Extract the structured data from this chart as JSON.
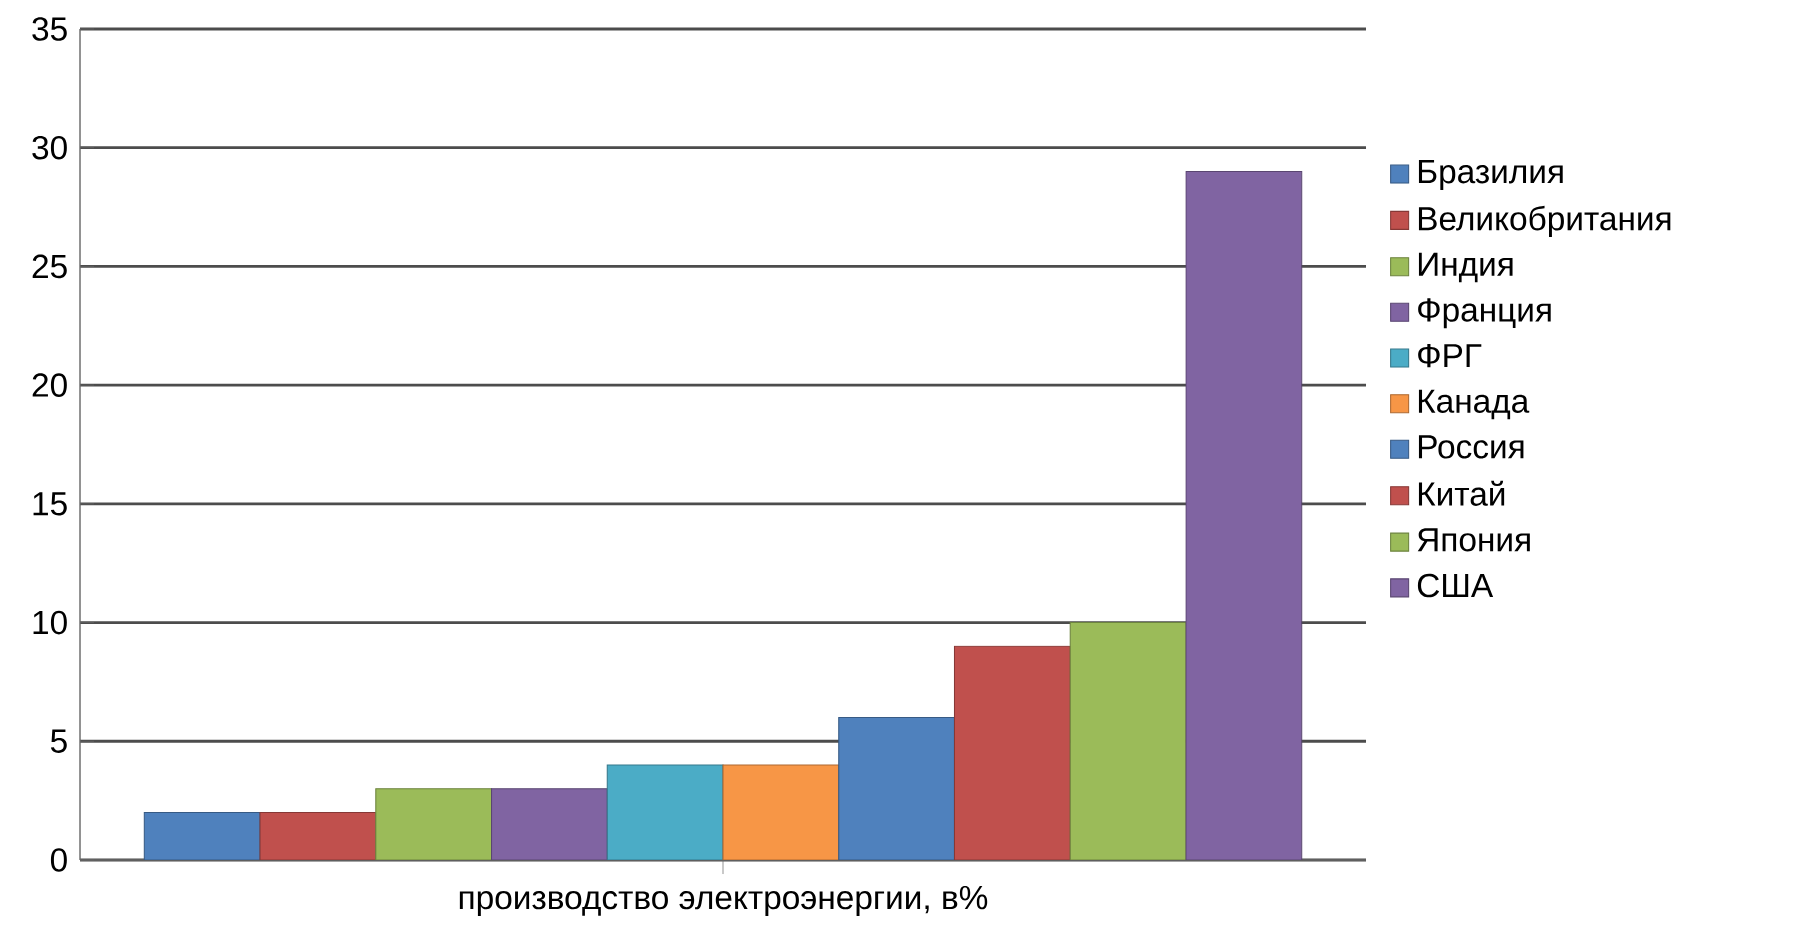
{
  "chart_data": {
    "type": "bar",
    "categories": [
      "производство электроэнергии, в%"
    ],
    "series": [
      {
        "name": "Бразилия",
        "color": "#4f81bd",
        "values": [
          2
        ]
      },
      {
        "name": "Великобритания",
        "color": "#c0504d",
        "values": [
          2
        ]
      },
      {
        "name": "Индия",
        "color": "#9bbb59",
        "values": [
          3
        ]
      },
      {
        "name": "Франция",
        "color": "#8064a2",
        "values": [
          3
        ]
      },
      {
        "name": "ФРГ",
        "color": "#4bacc6",
        "values": [
          4
        ]
      },
      {
        "name": "Канада",
        "color": "#f79646",
        "values": [
          4
        ]
      },
      {
        "name": "Россия",
        "color": "#4f81bd",
        "values": [
          6
        ]
      },
      {
        "name": "Китай",
        "color": "#c0504d",
        "values": [
          9
        ]
      },
      {
        "name": "Япония",
        "color": "#9bbb59",
        "values": [
          10
        ]
      },
      {
        "name": "США",
        "color": "#8064a2",
        "values": [
          29
        ]
      }
    ],
    "ylim": [
      0,
      35
    ],
    "yticks": [
      0,
      5,
      10,
      15,
      20,
      25,
      30,
      35
    ],
    "grid": "y",
    "legend": "right"
  }
}
